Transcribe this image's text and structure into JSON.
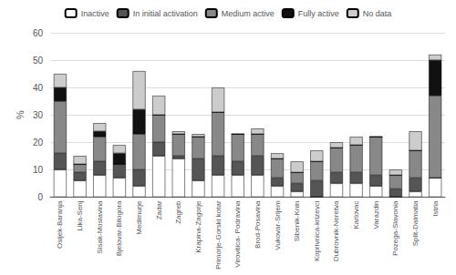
{
  "chart_data": {
    "type": "bar",
    "stacked": true,
    "categories": [
      "Osijek-Baranja",
      "Lika-Senj",
      "Sisak-Moslavina",
      "Bjelovar-Bilogora",
      "Medimurje",
      "Zadar",
      "Zagreb",
      "Krapina-Zagorje",
      "Primorje-Gorski kotar",
      "Virovitica- Podravina",
      "Brod-Posavina",
      "Vukovar-Srijem",
      "Sibenik-Knin",
      "Koprivnica-krizevci",
      "Dubrovnik-Neretva",
      "Karlovac",
      "Varazdin",
      "Pozega-Slavonia",
      "Split-Dalmatia",
      "Istria"
    ],
    "series": [
      {
        "name": "Inactive",
        "color": "#ffffff",
        "values": [
          10,
          6,
          8,
          7,
          4,
          15,
          14,
          6,
          8,
          8,
          8,
          4,
          2,
          0,
          5,
          5,
          4,
          0,
          2,
          7
        ]
      },
      {
        "name": "In initial activation",
        "color": "#555555",
        "values": [
          6,
          3,
          5,
          5,
          6,
          5,
          1,
          8,
          7,
          5,
          7,
          3,
          3,
          6,
          4,
          4,
          4,
          3,
          5,
          0
        ]
      },
      {
        "name": "Medium active",
        "color": "#888888",
        "values": [
          19,
          3,
          9,
          0,
          13,
          10,
          8,
          8,
          16,
          10,
          8,
          7,
          4,
          7,
          9,
          10,
          14,
          5,
          10,
          30
        ]
      },
      {
        "name": "Fully active",
        "color": "#111111",
        "values": [
          5,
          0,
          2,
          4,
          9,
          0,
          0,
          0,
          0,
          0,
          0,
          0,
          0,
          0,
          0,
          0,
          0,
          0,
          0,
          13
        ]
      },
      {
        "name": "No data",
        "color": "#cccccc",
        "values": [
          5,
          3,
          3,
          3,
          14,
          7,
          1,
          1,
          9,
          0,
          2,
          2,
          4,
          4,
          2,
          3,
          0,
          2,
          7,
          2
        ]
      }
    ],
    "ylabel": "%",
    "ylim": [
      0,
      60
    ],
    "yticks": [
      0,
      10,
      20,
      30,
      40,
      50,
      60
    ],
    "grid": true,
    "legend": "top"
  }
}
